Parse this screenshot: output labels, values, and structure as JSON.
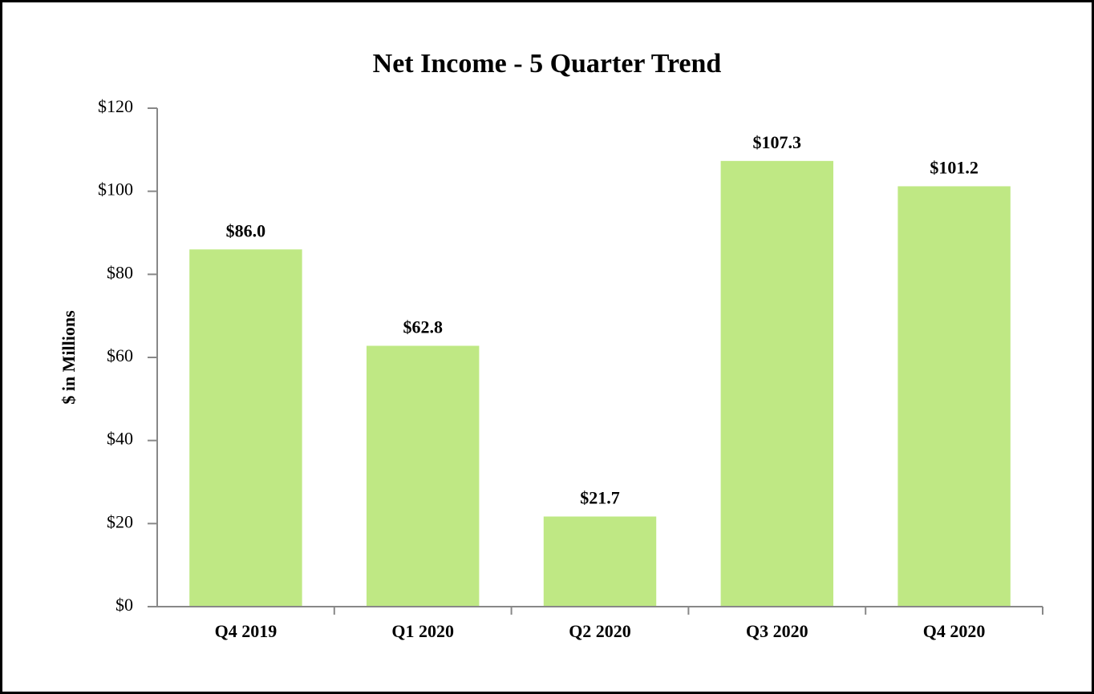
{
  "chart_data": {
    "type": "bar",
    "title": "Net Income - 5 Quarter Trend",
    "y_label": "$ in Millions",
    "categories": [
      "Q4 2019",
      "Q1 2020",
      "Q2 2020",
      "Q3 2020",
      "Q4 2020"
    ],
    "values": [
      86.0,
      62.8,
      21.7,
      107.3,
      101.2
    ],
    "value_labels": [
      "$86.0",
      "$62.8",
      "$21.7",
      "$107.3",
      "$101.2"
    ],
    "color": "#bfe884",
    "ylim": [
      0,
      120
    ],
    "yticks": [
      {
        "value": 0,
        "label": "$0"
      },
      {
        "value": 20,
        "label": "$20"
      },
      {
        "value": 40,
        "label": "$40"
      },
      {
        "value": 60,
        "label": "$60"
      },
      {
        "value": 80,
        "label": "$80"
      },
      {
        "value": 100,
        "label": "$100"
      },
      {
        "value": 120,
        "label": "$120"
      }
    ],
    "grid": false
  }
}
